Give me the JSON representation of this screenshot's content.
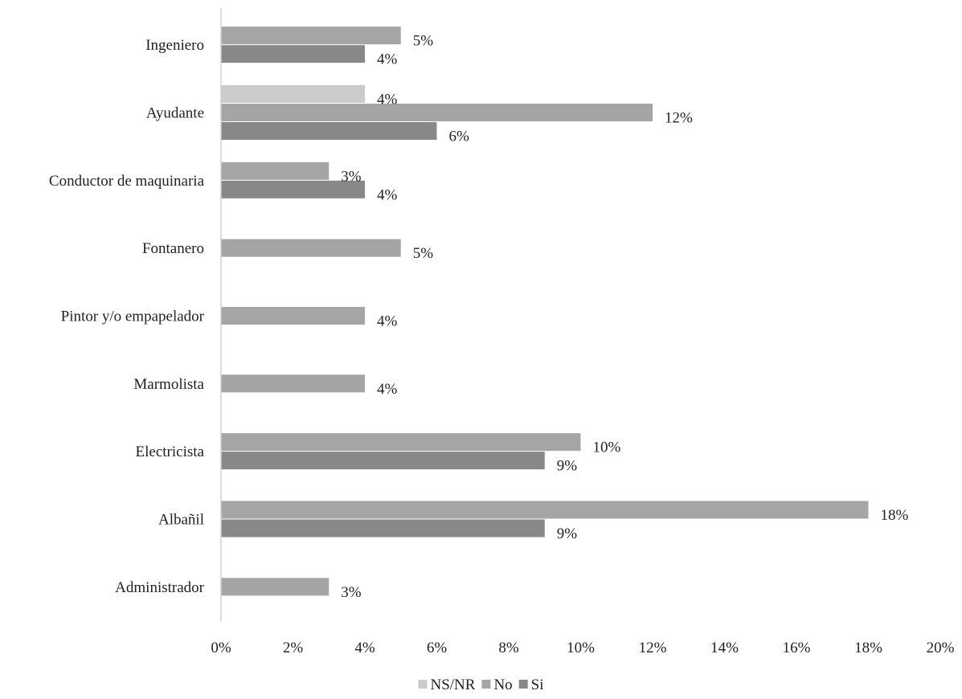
{
  "chart_data": {
    "type": "bar",
    "orientation": "horizontal",
    "categories": [
      "Ingeniero",
      "Ayudante",
      "Conductor de maquinaria",
      "Fontanero",
      "Pintor y/o empapelador",
      "Marmolista",
      "Electricista",
      "Albañil",
      "Administrador"
    ],
    "series": [
      {
        "name": "NS/NR",
        "color": "#cbcbcb",
        "values": [
          null,
          4,
          null,
          null,
          null,
          null,
          null,
          null,
          null
        ],
        "labels": [
          "",
          "4%",
          "",
          "",
          "",
          "",
          "",
          "",
          ""
        ]
      },
      {
        "name": "No",
        "color": "#a5a5a5",
        "values": [
          5,
          12,
          3,
          5,
          4,
          4,
          10,
          18,
          3
        ],
        "labels": [
          "5%",
          "12%",
          "3%",
          "5%",
          "4%",
          "4%",
          "10%",
          "18%",
          "3%"
        ]
      },
      {
        "name": "Si",
        "color": "#888888",
        "values": [
          4,
          6,
          4,
          null,
          null,
          null,
          9,
          9,
          null
        ],
        "labels": [
          "4%",
          "6%",
          "4%",
          "",
          "",
          "",
          "9%",
          "9%",
          ""
        ]
      }
    ],
    "x_ticks": [
      "0%",
      "2%",
      "4%",
      "6%",
      "8%",
      "10%",
      "12%",
      "14%",
      "16%",
      "18%",
      "20%"
    ],
    "xlim": [
      0,
      20
    ],
    "unit": "%",
    "grid": false,
    "legend_position": "bottom"
  }
}
